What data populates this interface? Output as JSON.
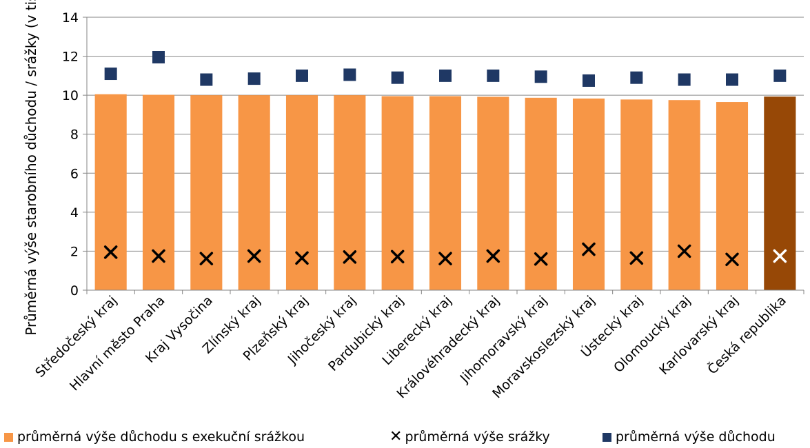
{
  "chart_data": {
    "type": "bar",
    "title": "",
    "ylabel": "Průměrná výše starobního důchodu / srážky (v tis.)",
    "xlabel": "",
    "ylim": [
      0,
      14
    ],
    "yticks": [
      0,
      2,
      4,
      6,
      8,
      10,
      12,
      14
    ],
    "grid": true,
    "legend_position": "bottom",
    "categories": [
      "Středočeský kraj",
      "Hlavní město Praha",
      "Kraj Vysočina",
      "Zlínský kraj",
      "Plzeňský kraj",
      "Jihočeský kraj",
      "Pardubický kraj",
      "Liberecký kraj",
      "Královéhradecký kraj",
      "Jihomoravský kraj",
      "Moravskoslezský kraj",
      "Ústecký kraj",
      "Olomoucký kraj",
      "Karlovarský kraj",
      "Česká republika"
    ],
    "series": [
      {
        "name": "průměrná výše důchodu s exekuční srážkou",
        "kind": "bar",
        "color": "#F79646",
        "highlight_color": "#974806",
        "highlight_index": 14,
        "values": [
          10.05,
          10.02,
          10.0,
          10.0,
          10.0,
          10.0,
          9.95,
          9.95,
          9.92,
          9.87,
          9.83,
          9.78,
          9.75,
          9.65,
          9.93
        ]
      },
      {
        "name": "průměrná výše srážky",
        "kind": "marker-x",
        "color": "#000000",
        "highlight_color": "#FFFFFF",
        "values": [
          1.95,
          1.75,
          1.62,
          1.75,
          1.65,
          1.7,
          1.72,
          1.62,
          1.75,
          1.6,
          2.1,
          1.65,
          2.0,
          1.58,
          1.75
        ]
      },
      {
        "name": "průměrná výše důchodu",
        "kind": "marker-square",
        "color": "#1F3864",
        "values": [
          11.1,
          11.95,
          10.8,
          10.85,
          11.0,
          11.05,
          10.9,
          11.0,
          11.0,
          10.95,
          10.75,
          10.9,
          10.8,
          10.8,
          11.0
        ]
      }
    ]
  }
}
